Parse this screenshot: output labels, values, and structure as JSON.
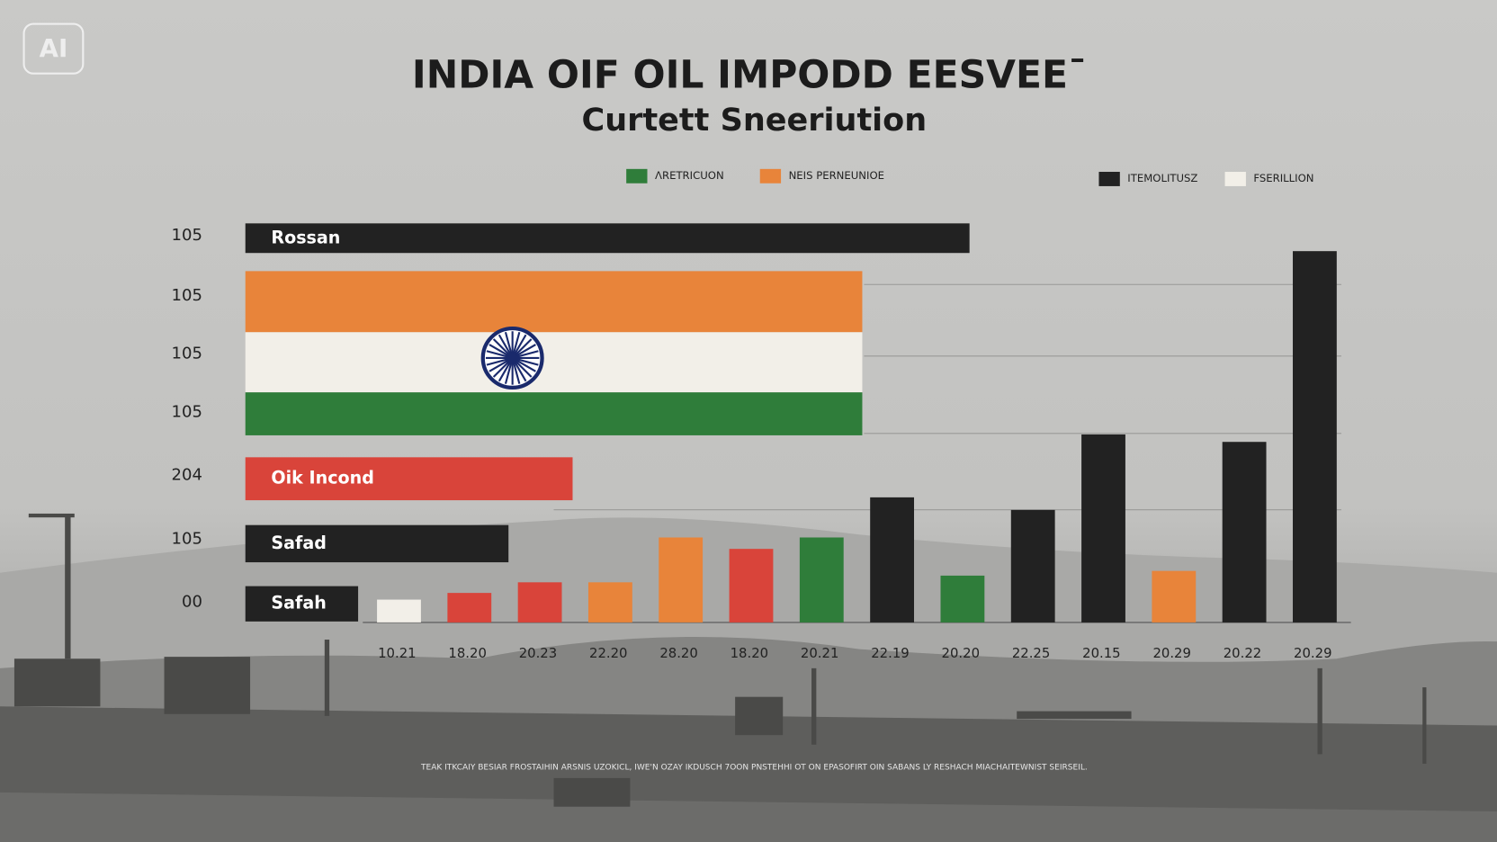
{
  "logo": "AI",
  "title": "INDIA OIF OIL IMPODD EESVEEˉ",
  "subtitle": "Curtett Sneeriution",
  "legend": [
    {
      "name": "ΛRETRICUON",
      "color": "#2f7d3a"
    },
    {
      "name": "NEIS PERNEUNIOE",
      "color": "#e8843a"
    },
    {
      "name": "ITEMOLITUSZ",
      "color": "#222222"
    },
    {
      "name": "FSERILLION",
      "color": "#f2efe8"
    }
  ],
  "footnote": "TEAK ITKCAIY BESIAR FROSTAIHIN ARSNIS UZOKICL, IWE'N OZAY IKDUSCH 7OON PNSTEHHI OT ON EPASOFIRT OIN SABANS LY RESHACH MIACHAITEWNIST SEIRSEIL.",
  "chart_data": [
    {
      "type": "hbar",
      "y_labels": [
        "105",
        "105",
        "105",
        "105",
        "204",
        "105",
        "00"
      ],
      "categories": [
        "Rossan",
        null,
        "Oik Incond",
        "Safad",
        "Safah"
      ],
      "values": [
        65.5,
        55.8,
        29.6,
        23.8,
        10.2
      ],
      "colors": [
        "#222222",
        [
          "#e8843a",
          "#f2efe8",
          "#2f7d3a"
        ],
        "#d9443a",
        "#222222",
        "#222222"
      ],
      "xlim": [
        0,
        100
      ]
    },
    {
      "type": "bar",
      "categories": [
        "10.21",
        "18.20",
        "20.23",
        "22.20",
        "28.20",
        "18.20",
        "20.21",
        "22.19",
        "20.20",
        "22.25",
        "20.15",
        "20.29",
        "20.22",
        "20.29"
      ],
      "values": [
        5.8,
        7.5,
        10.2,
        10.2,
        21.6,
        18.7,
        21.6,
        31.8,
        11.9,
        28.6,
        47.8,
        13.1,
        45.9,
        94.4
      ],
      "colors": [
        "#f2efe8",
        "#d9443a",
        "#d9443a",
        "#e8843a",
        "#e8843a",
        "#d9443a",
        "#2f7d3a",
        "#222222",
        "#2f7d3a",
        "#222222",
        "#222222",
        "#e8843a",
        "#222222",
        "#222222"
      ],
      "ylim": [
        0,
        100
      ]
    }
  ]
}
